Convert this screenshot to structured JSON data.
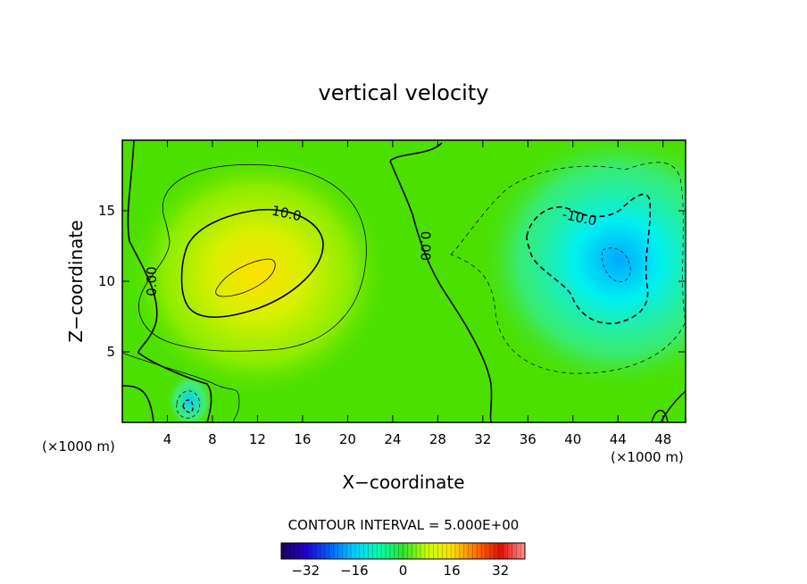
{
  "chart_data": {
    "type": "heatmap",
    "title": "vertical velocity",
    "xlabel": "X−coordinate",
    "ylabel": "Z−coordinate",
    "x_unit_left": "(×1000 m)",
    "x_unit_right": "(×1000 m)",
    "xlim": [
      0,
      50
    ],
    "ylim": [
      0,
      20
    ],
    "x_ticks": [
      4,
      8,
      12,
      16,
      20,
      24,
      28,
      32,
      36,
      40,
      44,
      48
    ],
    "y_ticks": [
      5,
      10,
      15
    ],
    "contour_interval_text": "CONTOUR INTERVAL = 5.000E+00",
    "colorbar": {
      "min": -40,
      "max": 40,
      "tick_values": [
        -32,
        -16,
        0,
        16,
        32
      ],
      "tick_labels": [
        "−32",
        "−16",
        "0",
        "16",
        "32"
      ],
      "colors": [
        "#1a0060",
        "#2200c8",
        "#0060ff",
        "#00d0ff",
        "#00ffb0",
        "#30e030",
        "#c8ff00",
        "#ffe000",
        "#ff7000",
        "#e01000",
        "#ff9090"
      ]
    },
    "fields": [
      {
        "name": "updraft",
        "x": 12,
        "z": 10.5,
        "peak": 21
      },
      {
        "name": "downdraft",
        "x": 44,
        "z": 11.5,
        "peak": -18
      },
      {
        "name": "small downdraft",
        "x": 6,
        "z": 1.5,
        "peak": -15
      }
    ],
    "contour_labels": [
      {
        "text": "10.0",
        "x": 14.5,
        "z": 14.5,
        "angle": 12
      },
      {
        "text": "-10.0",
        "x": 40.5,
        "z": 14.2,
        "angle": 12
      },
      {
        "text": "0.00",
        "x": 26.5,
        "z": 12.5,
        "angle": 90
      },
      {
        "text": "0.00",
        "x": 3,
        "z": 10,
        "angle": -90
      }
    ]
  }
}
